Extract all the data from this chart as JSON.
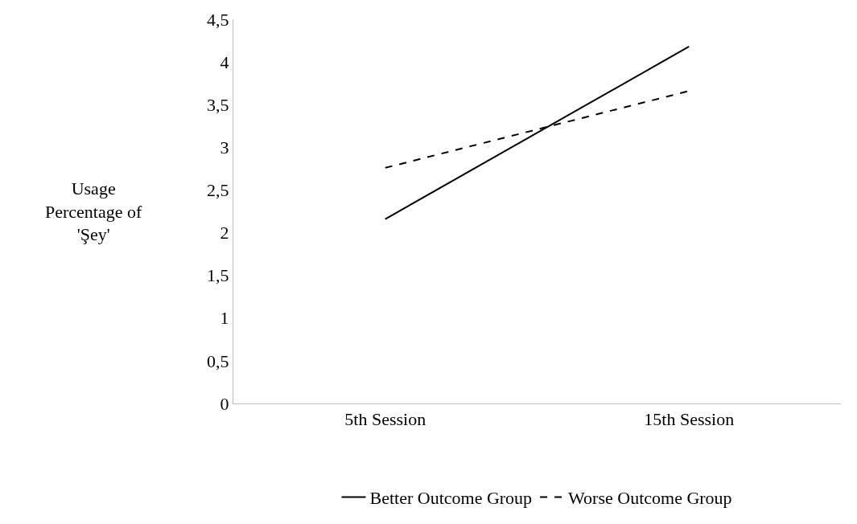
{
  "chart_data": {
    "type": "line",
    "ylabel": "Usage\nPercentage of\n'Şey'",
    "categories": [
      "5th Session",
      "15th Session"
    ],
    "series": [
      {
        "name": "Better Outcome Group",
        "color": "#000000",
        "values": [
          2.16,
          4.18
        ],
        "line_style": "solid"
      },
      {
        "name": "Worse Outcome Group",
        "color": "#000000",
        "values": [
          2.76,
          3.66
        ],
        "line_style": "dashed"
      }
    ],
    "ylim": [
      0,
      4.5
    ],
    "yticks": [
      0,
      {
        "value": 0.5,
        "label": "0,5"
      },
      1,
      {
        "value": 1.5,
        "label": "1,5"
      },
      2,
      {
        "value": 2.5,
        "label": "2,5"
      },
      3,
      {
        "value": 3.5,
        "label": "3,5"
      },
      4,
      {
        "value": 4.5,
        "label": "4,5"
      }
    ],
    "grid": false,
    "legend": "bottom",
    "marker": "none"
  }
}
